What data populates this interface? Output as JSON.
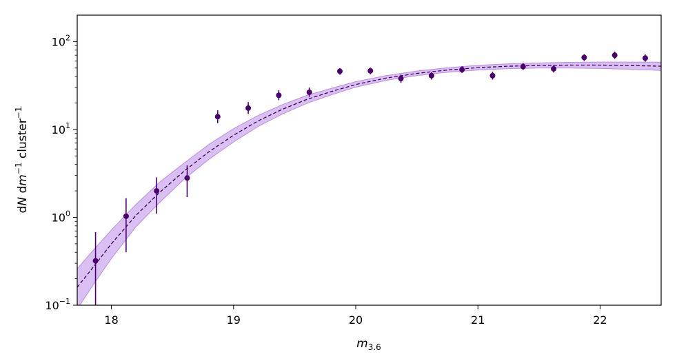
{
  "chart_data": {
    "type": "scatter",
    "xlabel": "m",
    "xlabel_subscript": "3.6",
    "ylabel_parts": [
      {
        "text": "d",
        "italic": false,
        "sup": false
      },
      {
        "text": "N",
        "italic": true,
        "sup": false
      },
      {
        "text": " d",
        "italic": false,
        "sup": false
      },
      {
        "text": "m",
        "italic": true,
        "sup": false
      },
      {
        "text": "−1",
        "italic": false,
        "sup": true
      },
      {
        "text": " cluster",
        "italic": false,
        "sup": false
      },
      {
        "text": "−1",
        "italic": false,
        "sup": true
      }
    ],
    "xlim": [
      17.72,
      22.5
    ],
    "ylim": [
      0.1,
      200
    ],
    "yscale": "log",
    "grid": false,
    "xticks": [
      18,
      19,
      20,
      21,
      22
    ],
    "xtick_labels": [
      "18",
      "19",
      "20",
      "21",
      "22"
    ],
    "yticks": [
      {
        "value": 0.1,
        "base": "10",
        "exp": "−1"
      },
      {
        "value": 1,
        "base": "10",
        "exp": "0"
      },
      {
        "value": 10,
        "base": "10",
        "exp": "1"
      },
      {
        "value": 100,
        "base": "10",
        "exp": "2"
      }
    ],
    "colors": {
      "points": "#4b0070",
      "fit_line": "#3a0058",
      "band_fill": "#d2b4f0",
      "band_edge": "#b98de6"
    },
    "points": [
      {
        "x": 17.87,
        "y": 0.32,
        "lo": 0.07,
        "hi": 0.68
      },
      {
        "x": 18.12,
        "y": 1.03,
        "lo": 0.4,
        "hi": 1.65
      },
      {
        "x": 18.37,
        "y": 2.0,
        "lo": 1.1,
        "hi": 2.85
      },
      {
        "x": 18.62,
        "y": 2.8,
        "lo": 1.7,
        "hi": 3.9
      },
      {
        "x": 18.87,
        "y": 14.0,
        "lo": 11.8,
        "hi": 16.5
      },
      {
        "x": 19.12,
        "y": 17.5,
        "lo": 15.0,
        "hi": 20.5
      },
      {
        "x": 19.37,
        "y": 24.5,
        "lo": 21.5,
        "hi": 28.0
      },
      {
        "x": 19.62,
        "y": 26.5,
        "lo": 23.5,
        "hi": 30.0
      },
      {
        "x": 19.87,
        "y": 46.0,
        "lo": 42.0,
        "hi": 50.0
      },
      {
        "x": 20.12,
        "y": 46.5,
        "lo": 42.5,
        "hi": 50.5
      },
      {
        "x": 20.37,
        "y": 38.0,
        "lo": 34.0,
        "hi": 42.0
      },
      {
        "x": 20.62,
        "y": 41.0,
        "lo": 37.0,
        "hi": 45.0
      },
      {
        "x": 20.87,
        "y": 48.0,
        "lo": 44.0,
        "hi": 52.5
      },
      {
        "x": 21.12,
        "y": 41.0,
        "lo": 37.0,
        "hi": 45.5
      },
      {
        "x": 21.37,
        "y": 52.0,
        "lo": 47.5,
        "hi": 57.0
      },
      {
        "x": 21.62,
        "y": 49.0,
        "lo": 44.5,
        "hi": 54.0
      },
      {
        "x": 21.87,
        "y": 66.0,
        "lo": 60.0,
        "hi": 72.0
      },
      {
        "x": 22.12,
        "y": 70.0,
        "lo": 63.5,
        "hi": 77.0
      },
      {
        "x": 22.37,
        "y": 65.0,
        "lo": 59.0,
        "hi": 71.5
      }
    ],
    "fit": {
      "x": [
        17.72,
        17.85,
        18.0,
        18.2,
        18.4,
        18.6,
        18.8,
        19.0,
        19.2,
        19.4,
        19.6,
        19.8,
        20.0,
        20.25,
        20.5,
        20.75,
        21.0,
        21.25,
        21.5,
        21.75,
        22.0,
        22.25,
        22.5
      ],
      "y": [
        0.16,
        0.27,
        0.5,
        1.05,
        1.95,
        3.4,
        5.6,
        8.6,
        12.5,
        17.0,
        22.0,
        27.0,
        32.5,
        38.5,
        43.5,
        47.5,
        50.5,
        52.5,
        53.5,
        54.0,
        54.0,
        53.5,
        52.5
      ],
      "lo": [
        0.09,
        0.17,
        0.34,
        0.78,
        1.5,
        2.75,
        4.6,
        7.2,
        10.8,
        15.0,
        19.8,
        24.8,
        30.3,
        36.2,
        41.0,
        44.8,
        47.5,
        49.2,
        50.0,
        50.0,
        49.5,
        48.5,
        47.0
      ],
      "hi": [
        0.26,
        0.42,
        0.72,
        1.4,
        2.55,
        4.2,
        6.8,
        10.2,
        14.4,
        19.2,
        24.4,
        29.4,
        35.0,
        41.0,
        46.2,
        50.4,
        53.6,
        55.9,
        57.2,
        58.0,
        58.4,
        58.5,
        58.3
      ]
    }
  }
}
